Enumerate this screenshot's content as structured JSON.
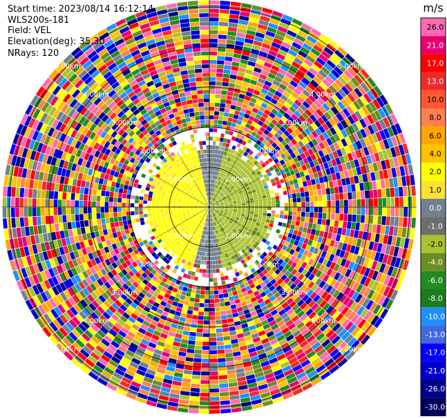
{
  "header": {
    "start_time": "Start time: 2023/08/14 16:12:14",
    "instrument": "WLS200s-181",
    "field": "Field: VEL",
    "elevation": "Elevation(deg): 35.30",
    "nrays": "NRays: 120"
  },
  "colorbar": {
    "unit": "m/s",
    "ticks": [
      "26.0",
      "21.0",
      "17.0",
      "13.0",
      "10.0",
      "8.0",
      "6.0",
      "4.0",
      "2.0",
      "1.0",
      "0.0",
      "-1.0",
      "-2.0",
      "-4.0",
      "-6.0",
      "-8.0",
      "-10.0",
      "-13.0",
      "-17.0",
      "-21.0",
      "-26.0",
      "-30.0"
    ],
    "colors": [
      "#ff69b4",
      "#e8006e",
      "#ff0000",
      "#ee2b2b",
      "#ff5733",
      "#ff7f50",
      "#ffa500",
      "#ffc200",
      "#ffff00",
      "#ffe135",
      "#708090",
      "#6d6d6d",
      "#a9c230",
      "#6b8e23",
      "#228b22",
      "#1e7a1e",
      "#1e90ff",
      "#4169e1",
      "#0000ff",
      "#0000cd",
      "#00008b",
      "#000060"
    ]
  },
  "chart_data": {
    "type": "polar-ppi",
    "field": "VEL",
    "nrays": 120,
    "range_rings_km": [
      1,
      2,
      3,
      4,
      5
    ],
    "ring_labels": [
      "1.00km",
      "2.00km",
      "3.00km",
      "4.00km",
      "5.00km"
    ],
    "colorbar_unit": "m/s",
    "colorbar_ticks": [
      26,
      21,
      17,
      13,
      10,
      8,
      6,
      4,
      2,
      1,
      0,
      -1,
      -2,
      -4,
      -6,
      -8,
      -10,
      -13,
      -17,
      -21,
      -26,
      -30
    ],
    "regions": [
      {
        "sector": "west",
        "range_km": [
          0,
          1.6
        ],
        "velocity_range": [
          1,
          4
        ],
        "color": "#ffff00"
      },
      {
        "sector": "east",
        "range_km": [
          0,
          1.6
        ],
        "velocity_range": [
          -4,
          -1
        ],
        "color": "#a9c230"
      },
      {
        "sector": "north-south axis",
        "range_km": [
          0,
          1.6
        ],
        "velocity_range": [
          -1,
          1
        ],
        "color": "#708090"
      },
      {
        "sector": "all",
        "range_km": [
          1.6,
          5.5
        ],
        "description": "noise"
      }
    ]
  }
}
